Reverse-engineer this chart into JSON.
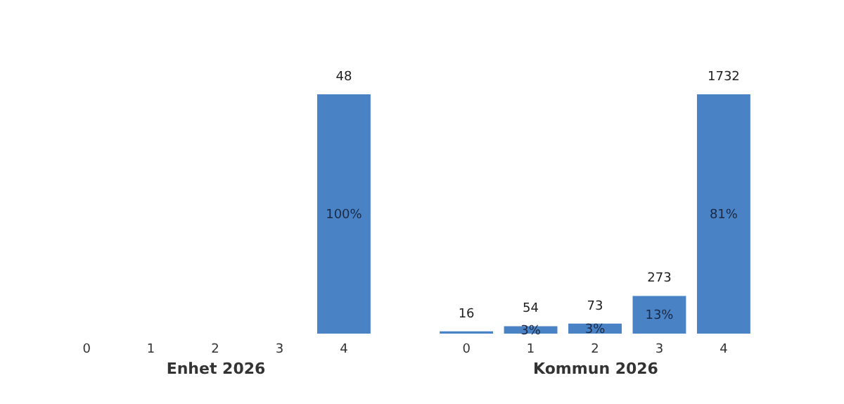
{
  "chart_data": [
    {
      "type": "bar",
      "xlabel": "Enhet 2026",
      "categories": [
        "0",
        "1",
        "2",
        "3",
        "4"
      ],
      "values": [
        null,
        null,
        null,
        null,
        48
      ],
      "color": "#4a82c6",
      "data_labels": true,
      "grid": false,
      "annotations": [
        "100%"
      ]
    },
    {
      "type": "bar",
      "xlabel": "Kommun 2026",
      "categories": [
        "0",
        "1",
        "2",
        "3",
        "4"
      ],
      "values": [
        16,
        54,
        73,
        273,
        1732
      ],
      "color": "#4a82c6",
      "data_labels": true,
      "grid": false,
      "annotations": [
        "3%",
        "3%",
        "13%",
        "81%"
      ]
    }
  ]
}
